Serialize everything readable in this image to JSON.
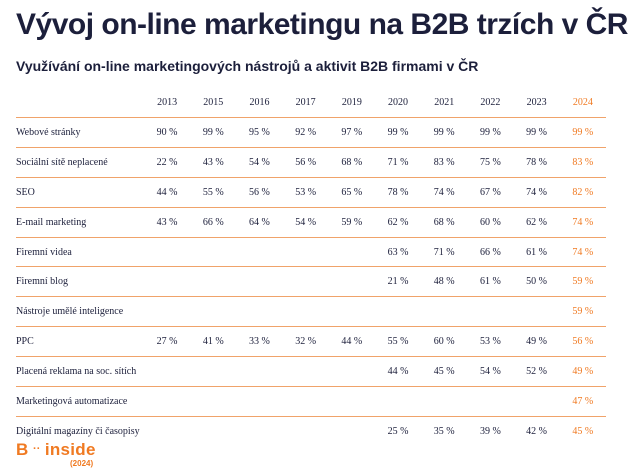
{
  "title": "Vývoj on-line marketingu na B2B trzích v ČR",
  "subtitle": "Využívání on-line marketingových nástrojů a aktivit B2B firmami v ČR",
  "colors": {
    "accent": "#f07a22",
    "text": "#1c1f3b",
    "rule": "#f0a36a"
  },
  "table": {
    "years": [
      "2013",
      "2015",
      "2016",
      "2017",
      "2019",
      "2020",
      "2021",
      "2022",
      "2023",
      "2024"
    ],
    "rows": [
      {
        "label": "Webové stránky",
        "values": [
          "90 %",
          "99 %",
          "95 %",
          "92 %",
          "97 %",
          "99 %",
          "99 %",
          "99 %",
          "99 %",
          "99 %"
        ]
      },
      {
        "label": "Sociální sítě neplacené",
        "values": [
          "22 %",
          "43 %",
          "54 %",
          "56 %",
          "68 %",
          "71 %",
          "83 %",
          "75 %",
          "78 %",
          "83 %"
        ]
      },
      {
        "label": "SEO",
        "values": [
          "44 %",
          "55 %",
          "56 %",
          "53 %",
          "65 %",
          "78 %",
          "74 %",
          "67 %",
          "74 %",
          "82 %"
        ]
      },
      {
        "label": "E-mail marketing",
        "values": [
          "43 %",
          "66 %",
          "64 %",
          "54 %",
          "59 %",
          "62 %",
          "68 %",
          "60 %",
          "62 %",
          "74 %"
        ]
      },
      {
        "label": "Firemní videa",
        "values": [
          "",
          "",
          "",
          "",
          "",
          "63 %",
          "71 %",
          "66 %",
          "61 %",
          "74 %"
        ]
      },
      {
        "label": "Firemní blog",
        "values": [
          "",
          "",
          "",
          "",
          "",
          "21 %",
          "48 %",
          "61 %",
          "50 %",
          "59 %"
        ]
      },
      {
        "label": "Nástroje umělé inteligence",
        "values": [
          "",
          "",
          "",
          "",
          "",
          "",
          "",
          "",
          "",
          "59 %"
        ]
      },
      {
        "label": "PPC",
        "values": [
          "27 %",
          "41 %",
          "33 %",
          "32 %",
          "44 %",
          "55 %",
          "60 %",
          "53 %",
          "49 %",
          "56 %"
        ]
      },
      {
        "label": "Placená reklama na soc. sítích",
        "values": [
          "",
          "",
          "",
          "",
          "",
          "44 %",
          "45 %",
          "54 %",
          "52 %",
          "49 %"
        ]
      },
      {
        "label": "Marketingová automatizace",
        "values": [
          "",
          "",
          "",
          "",
          "",
          "",
          "",
          "",
          "",
          "47 %"
        ]
      },
      {
        "label": "Digitální magazíny či časopisy",
        "values": [
          "",
          "",
          "",
          "",
          "",
          "25 %",
          "35 %",
          "39 %",
          "42 %",
          "45 %"
        ]
      }
    ]
  },
  "logo": {
    "brand_left": "B",
    "dots": "··",
    "brand_right": "inside",
    "year": "(2024)"
  }
}
